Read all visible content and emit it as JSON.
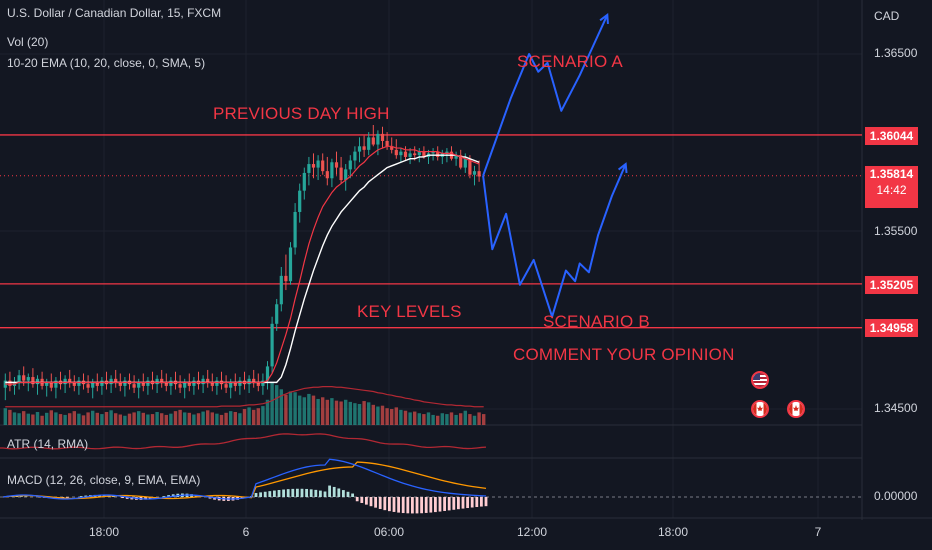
{
  "header": {
    "symbol_title": "U.S. Dollar / Canadian Dollar, 15, FXCM",
    "volume_indicator": "Vol (20)",
    "ema_indicator": "10-20 EMA (10, 20, close, 0, SMA, 5)",
    "atr_indicator": "ATR (14, RMA)",
    "macd_indicator": "MACD (12, 26, close, 9, EMA, EMA)"
  },
  "price_axis": {
    "currency": "CAD",
    "ticks": [
      "1.36500",
      "1.35500",
      "1.34500"
    ],
    "level_tags": [
      "1.36044",
      "1.35205",
      "1.34958"
    ],
    "current_price": "1.35814",
    "countdown": "14:42",
    "macd_zero": "0.00000"
  },
  "time_axis": {
    "ticks": [
      "18:00",
      "6",
      "06:00",
      "12:00",
      "18:00",
      "7"
    ]
  },
  "annotations": {
    "previous_day_high": "PREVIOUS DAY HIGH",
    "key_levels": "KEY LEVELS",
    "scenario_a": "SCENARIO A",
    "scenario_b": "SCENARIO B",
    "comment": "COMMENT YOUR OPINION"
  },
  "events": {
    "flags": [
      "us-flag",
      "canada-flag",
      "canada-flag"
    ]
  },
  "colors": {
    "background": "#131722",
    "bull": "#26a69a",
    "bear": "#ef5350",
    "level_line": "#f23645",
    "scenario_path": "#2962ff",
    "ema_fast": "#f23645",
    "ema_slow": "#ffffff",
    "macd_line": "#2962ff",
    "signal_line": "#ff9800",
    "atr_line": "#b22833"
  },
  "chart_data": {
    "type": "candlestick",
    "symbol": "USDCAD",
    "timeframe": "15",
    "horizontal_levels": [
      1.36044,
      1.35205,
      1.34958
    ],
    "current_price": 1.35814,
    "y_ticks": [
      1.365,
      1.355,
      1.345
    ],
    "ylim": [
      1.3435,
      1.3675
    ],
    "candles": [
      [
        1.3462,
        1.347,
        1.3455,
        1.3466
      ],
      [
        1.3466,
        1.3471,
        1.346,
        1.3463
      ],
      [
        1.3463,
        1.3468,
        1.3458,
        1.3465
      ],
      [
        1.3465,
        1.3472,
        1.3461,
        1.3469
      ],
      [
        1.3469,
        1.3474,
        1.3463,
        1.3466
      ],
      [
        1.3466,
        1.347,
        1.346,
        1.3468
      ],
      [
        1.3468,
        1.3473,
        1.3462,
        1.3464
      ],
      [
        1.3464,
        1.3469,
        1.3458,
        1.3467
      ],
      [
        1.3467,
        1.3471,
        1.3461,
        1.3463
      ],
      [
        1.3463,
        1.3467,
        1.3457,
        1.3465
      ],
      [
        1.3465,
        1.347,
        1.346,
        1.3462
      ],
      [
        1.3462,
        1.3468,
        1.3456,
        1.3466
      ],
      [
        1.3466,
        1.3471,
        1.3461,
        1.3464
      ],
      [
        1.3464,
        1.3469,
        1.3459,
        1.3467
      ],
      [
        1.3467,
        1.3472,
        1.3462,
        1.3465
      ],
      [
        1.3465,
        1.3469,
        1.346,
        1.3463
      ],
      [
        1.3463,
        1.3468,
        1.3458,
        1.3466
      ],
      [
        1.3466,
        1.347,
        1.3461,
        1.3464
      ],
      [
        1.3464,
        1.3469,
        1.3459,
        1.3462
      ],
      [
        1.3462,
        1.3467,
        1.3456,
        1.3465
      ],
      [
        1.3465,
        1.347,
        1.346,
        1.3463
      ],
      [
        1.3463,
        1.3468,
        1.3458,
        1.3466
      ],
      [
        1.3466,
        1.3471,
        1.3461,
        1.3464
      ],
      [
        1.3464,
        1.3469,
        1.3459,
        1.3467
      ],
      [
        1.3467,
        1.3472,
        1.3462,
        1.3465
      ],
      [
        1.3465,
        1.347,
        1.346,
        1.3463
      ],
      [
        1.3463,
        1.3468,
        1.3457,
        1.3466
      ],
      [
        1.3466,
        1.347,
        1.3461,
        1.3464
      ],
      [
        1.3464,
        1.3469,
        1.3459,
        1.3462
      ],
      [
        1.3462,
        1.3467,
        1.3456,
        1.3465
      ],
      [
        1.3465,
        1.347,
        1.346,
        1.3463
      ],
      [
        1.3463,
        1.3468,
        1.3458,
        1.3466
      ],
      [
        1.3466,
        1.3471,
        1.3461,
        1.3464
      ],
      [
        1.3464,
        1.3469,
        1.3459,
        1.3467
      ],
      [
        1.3467,
        1.3472,
        1.3462,
        1.3465
      ],
      [
        1.3465,
        1.347,
        1.346,
        1.3463
      ],
      [
        1.3463,
        1.3468,
        1.3458,
        1.3466
      ],
      [
        1.3466,
        1.3471,
        1.3461,
        1.3464
      ],
      [
        1.3464,
        1.3469,
        1.3459,
        1.3462
      ],
      [
        1.3462,
        1.3467,
        1.3456,
        1.3465
      ],
      [
        1.3465,
        1.347,
        1.346,
        1.3463
      ],
      [
        1.3463,
        1.3468,
        1.3458,
        1.3466
      ],
      [
        1.3466,
        1.3471,
        1.3461,
        1.3464
      ],
      [
        1.3464,
        1.3469,
        1.3459,
        1.3467
      ],
      [
        1.3467,
        1.3472,
        1.3462,
        1.3465
      ],
      [
        1.3465,
        1.347,
        1.346,
        1.3463
      ],
      [
        1.3463,
        1.3468,
        1.3458,
        1.3466
      ],
      [
        1.3466,
        1.3471,
        1.3461,
        1.3464
      ],
      [
        1.3464,
        1.3469,
        1.3459,
        1.3462
      ],
      [
        1.3462,
        1.3467,
        1.3456,
        1.3465
      ],
      [
        1.3465,
        1.347,
        1.346,
        1.3463
      ],
      [
        1.3463,
        1.3468,
        1.3458,
        1.3466
      ],
      [
        1.3466,
        1.3471,
        1.3461,
        1.3464
      ],
      [
        1.3464,
        1.3469,
        1.3459,
        1.3467
      ],
      [
        1.3467,
        1.3472,
        1.3462,
        1.3465
      ],
      [
        1.3465,
        1.347,
        1.346,
        1.3463
      ],
      [
        1.3463,
        1.347,
        1.3458,
        1.3466
      ],
      [
        1.3466,
        1.3477,
        1.3461,
        1.3474
      ],
      [
        1.3474,
        1.3502,
        1.347,
        1.3498
      ],
      [
        1.3498,
        1.3512,
        1.3494,
        1.3509
      ],
      [
        1.3509,
        1.353,
        1.3505,
        1.3525
      ],
      [
        1.3525,
        1.3537,
        1.3517,
        1.3522
      ],
      [
        1.3522,
        1.3544,
        1.352,
        1.3541
      ],
      [
        1.3541,
        1.3566,
        1.3537,
        1.3561
      ],
      [
        1.3561,
        1.3577,
        1.3555,
        1.3573
      ],
      [
        1.3573,
        1.3586,
        1.3568,
        1.3583
      ],
      [
        1.3583,
        1.3592,
        1.3576,
        1.3588
      ],
      [
        1.3588,
        1.3594,
        1.358,
        1.3586
      ],
      [
        1.3586,
        1.3593,
        1.3579,
        1.359
      ],
      [
        1.359,
        1.3594,
        1.3582,
        1.3584
      ],
      [
        1.3584,
        1.3592,
        1.3576,
        1.358
      ],
      [
        1.358,
        1.3591,
        1.3575,
        1.3589
      ],
      [
        1.3589,
        1.3595,
        1.3582,
        1.3586
      ],
      [
        1.3586,
        1.3592,
        1.3577,
        1.3579
      ],
      [
        1.3579,
        1.3588,
        1.3573,
        1.3585
      ],
      [
        1.3585,
        1.3593,
        1.358,
        1.359
      ],
      [
        1.359,
        1.3598,
        1.3585,
        1.3595
      ],
      [
        1.3595,
        1.3603,
        1.3589,
        1.3598
      ],
      [
        1.3598,
        1.3604,
        1.3592,
        1.3596
      ],
      [
        1.3596,
        1.3606,
        1.3593,
        1.3603
      ],
      [
        1.3603,
        1.361,
        1.3598,
        1.3599
      ],
      [
        1.3599,
        1.3607,
        1.3593,
        1.3605
      ],
      [
        1.3605,
        1.3609,
        1.3597,
        1.3601
      ],
      [
        1.3601,
        1.3606,
        1.3596,
        1.3598
      ],
      [
        1.3598,
        1.3603,
        1.3594,
        1.3596
      ],
      [
        1.3596,
        1.3602,
        1.3591,
        1.3593
      ],
      [
        1.3593,
        1.3597,
        1.3589,
        1.3595
      ],
      [
        1.3595,
        1.3598,
        1.359,
        1.3592
      ],
      [
        1.3592,
        1.3597,
        1.3588,
        1.3594
      ],
      [
        1.3594,
        1.3598,
        1.359,
        1.3593
      ],
      [
        1.3593,
        1.3597,
        1.3589,
        1.3595
      ],
      [
        1.3595,
        1.3598,
        1.3591,
        1.3592
      ],
      [
        1.3592,
        1.3596,
        1.3588,
        1.3594
      ],
      [
        1.3594,
        1.3597,
        1.359,
        1.3595
      ],
      [
        1.3595,
        1.3598,
        1.359,
        1.3592
      ],
      [
        1.3592,
        1.3596,
        1.3588,
        1.3594
      ],
      [
        1.3594,
        1.3597,
        1.3589,
        1.3595
      ],
      [
        1.3595,
        1.3598,
        1.359,
        1.3591
      ],
      [
        1.3591,
        1.3595,
        1.3587,
        1.3593
      ],
      [
        1.3593,
        1.3596,
        1.3585,
        1.3586
      ],
      [
        1.3586,
        1.3594,
        1.3583,
        1.3591
      ],
      [
        1.3591,
        1.3593,
        1.358,
        1.3582
      ],
      [
        1.3582,
        1.3587,
        1.3576,
        1.3584
      ],
      [
        1.3584,
        1.359,
        1.3578,
        1.3581
      ]
    ],
    "volume": [
      40,
      36,
      30,
      28,
      33,
      27,
      25,
      31,
      22,
      29,
      35,
      30,
      26,
      24,
      28,
      33,
      27,
      23,
      30,
      34,
      29,
      26,
      31,
      35,
      28,
      25,
      22,
      27,
      30,
      33,
      29,
      25,
      26,
      31,
      28,
      24,
      27,
      33,
      36,
      30,
      29,
      25,
      28,
      32,
      35,
      30,
      27,
      24,
      29,
      33,
      31,
      28,
      38,
      42,
      36,
      40,
      45,
      60,
      100,
      95,
      85,
      72,
      80,
      78,
      70,
      66,
      74,
      70,
      62,
      66,
      60,
      64,
      58,
      56,
      60,
      55,
      52,
      50,
      57,
      54,
      48,
      44,
      46,
      40,
      38,
      42,
      36,
      34,
      30,
      32,
      28,
      26,
      30,
      24,
      22,
      28,
      26,
      30,
      24,
      28,
      34,
      26,
      22,
      30,
      26
    ],
    "volume_ma": [
      30,
      30,
      30,
      30,
      30,
      30,
      30,
      30,
      30,
      30,
      30,
      30,
      30,
      30,
      30,
      30,
      30,
      30,
      30,
      30,
      30,
      30,
      30,
      30,
      30,
      30,
      30,
      30,
      30,
      30,
      30,
      30,
      30,
      30,
      30,
      30,
      30,
      30,
      30,
      30,
      30,
      30,
      30,
      30,
      30,
      30,
      30,
      31,
      31,
      31,
      31,
      31,
      32,
      33,
      33,
      34,
      35,
      37,
      40,
      44,
      48,
      51,
      54,
      56,
      58,
      60,
      61,
      62,
      62,
      63,
      63,
      63,
      62,
      62,
      61,
      60,
      59,
      58,
      57,
      56,
      55,
      53,
      52,
      50,
      49,
      47,
      46,
      44,
      43,
      41,
      40,
      38,
      37,
      36,
      35,
      34,
      33,
      33,
      32,
      32,
      31,
      31,
      30,
      30,
      30
    ],
    "ema_fast": [
      1.3464,
      1.3464,
      1.3464,
      1.3465,
      1.3465,
      1.3465,
      1.3465,
      1.3465,
      1.3465,
      1.3465,
      1.3465,
      1.3465,
      1.3465,
      1.3465,
      1.3465,
      1.3465,
      1.3465,
      1.3465,
      1.3465,
      1.3465,
      1.3465,
      1.3465,
      1.3465,
      1.3465,
      1.3465,
      1.3465,
      1.3465,
      1.3465,
      1.3465,
      1.3465,
      1.3465,
      1.3465,
      1.3465,
      1.3465,
      1.3465,
      1.3465,
      1.3465,
      1.3465,
      1.3465,
      1.3465,
      1.3465,
      1.3465,
      1.3465,
      1.3465,
      1.3465,
      1.3465,
      1.3465,
      1.3465,
      1.3465,
      1.3465,
      1.3465,
      1.3465,
      1.3465,
      1.3465,
      1.3465,
      1.3465,
      1.3465,
      1.3466,
      1.347,
      1.3476,
      1.3484,
      1.3492,
      1.3501,
      1.3512,
      1.3522,
      1.3533,
      1.3543,
      1.3551,
      1.3558,
      1.3564,
      1.3568,
      1.3572,
      1.3575,
      1.3577,
      1.3579,
      1.3581,
      1.3584,
      1.3587,
      1.3589,
      1.3592,
      1.3594,
      1.3596,
      1.3597,
      1.3598,
      1.3598,
      1.3597,
      1.3597,
      1.3596,
      1.3596,
      1.3596,
      1.3595,
      1.3595,
      1.3595,
      1.3595,
      1.3595,
      1.3594,
      1.3594,
      1.3594,
      1.3593,
      1.3592,
      1.3591,
      1.359,
      1.3589,
      1.3588
    ],
    "ema_slow": [
      1.3465,
      1.3465,
      1.3465,
      1.3465,
      1.3465,
      1.3465,
      1.3465,
      1.3465,
      1.3465,
      1.3465,
      1.3465,
      1.3465,
      1.3465,
      1.3465,
      1.3465,
      1.3465,
      1.3465,
      1.3465,
      1.3465,
      1.3465,
      1.3465,
      1.3465,
      1.3465,
      1.3465,
      1.3465,
      1.3465,
      1.3465,
      1.3465,
      1.3465,
      1.3465,
      1.3465,
      1.3465,
      1.3465,
      1.3465,
      1.3465,
      1.3465,
      1.3465,
      1.3465,
      1.3465,
      1.3465,
      1.3465,
      1.3465,
      1.3465,
      1.3465,
      1.3465,
      1.3465,
      1.3465,
      1.3465,
      1.3465,
      1.3465,
      1.3465,
      1.3465,
      1.3465,
      1.3465,
      1.3465,
      1.3465,
      1.3465,
      1.3465,
      1.3465,
      1.3465,
      1.3468,
      1.3475,
      1.3484,
      1.3494,
      1.3503,
      1.3512,
      1.352,
      1.3528,
      1.3535,
      1.3542,
      1.3548,
      1.3553,
      1.3557,
      1.3561,
      1.3564,
      1.3567,
      1.357,
      1.3573,
      1.3575,
      1.3578,
      1.358,
      1.3582,
      1.3584,
      1.3586,
      1.3587,
      1.3588,
      1.3589,
      1.359,
      1.3591,
      1.3591,
      1.3592,
      1.3592,
      1.3593,
      1.3593,
      1.3593,
      1.3593,
      1.3593,
      1.3593,
      1.3593,
      1.3592,
      1.3592,
      1.3591,
      1.359,
      1.3589
    ],
    "scenario_a_path": [
      [
        0,
        1.35814
      ],
      [
        6,
        1.3625
      ],
      [
        10,
        1.365
      ],
      [
        12,
        1.364
      ],
      [
        14,
        1.3645
      ],
      [
        17,
        1.3618
      ],
      [
        19,
        1.3628
      ],
      [
        21,
        1.3638
      ],
      [
        24,
        1.3655
      ],
      [
        27,
        1.3672
      ]
    ],
    "scenario_b_path": [
      [
        0,
        1.35814
      ],
      [
        2,
        1.354
      ],
      [
        5,
        1.356
      ],
      [
        8,
        1.352
      ],
      [
        11,
        1.3534
      ],
      [
        15,
        1.3502
      ],
      [
        18,
        1.3528
      ],
      [
        20,
        1.3522
      ],
      [
        21,
        1.3532
      ],
      [
        23,
        1.3527
      ],
      [
        25,
        1.3548
      ],
      [
        28,
        1.357
      ],
      [
        31,
        1.3588
      ]
    ]
  }
}
